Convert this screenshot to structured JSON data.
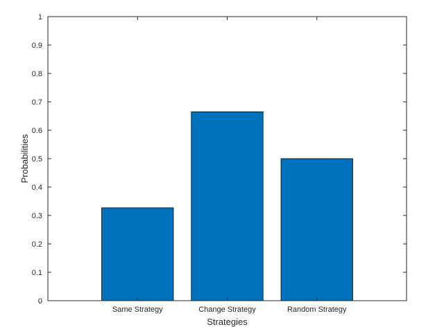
{
  "chart_data": {
    "type": "bar",
    "categories": [
      "Same Strategy",
      "Change Strategy",
      "Random Strategy"
    ],
    "values": [
      0.327,
      0.665,
      0.5
    ],
    "xlabel": "Strategies",
    "ylabel": "Probabilities",
    "ylim": [
      0,
      1
    ],
    "yticks": [
      "0",
      "0.1",
      "0.2",
      "0.3",
      "0.4",
      "0.5",
      "0.6",
      "0.7",
      "0.8",
      "0.9",
      "1"
    ],
    "grid": false,
    "bar_color": "#0072BD",
    "bar_edge_color": "#000000"
  }
}
